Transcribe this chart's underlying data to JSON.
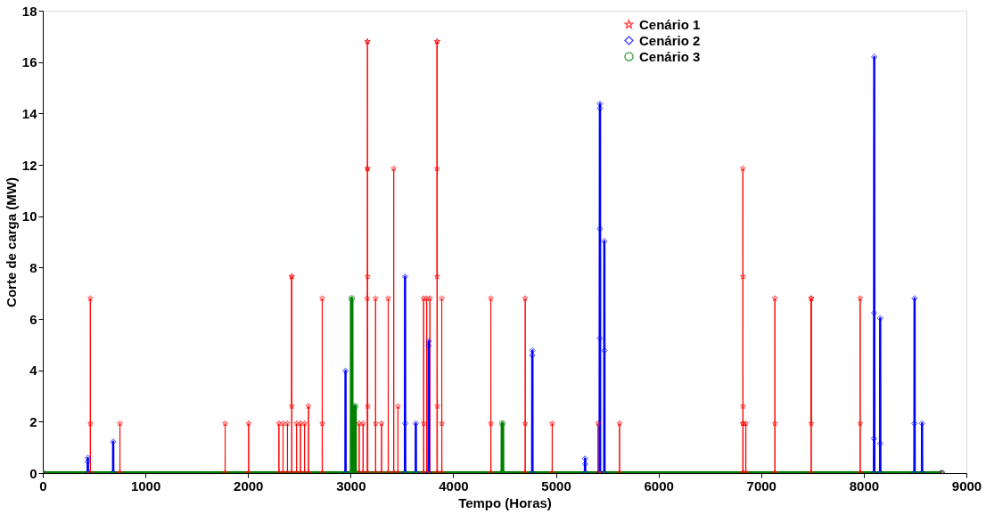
{
  "chart_data": {
    "type": "line",
    "xlabel": "Tempo  (Horas)",
    "ylabel": "Corte de carga (MW)",
    "xlim": [
      0,
      9000
    ],
    "xticks": [
      0,
      1000,
      2000,
      3000,
      4000,
      5000,
      6000,
      7000,
      8000,
      9000
    ],
    "ylim": [
      0,
      18
    ],
    "yticks": [
      0,
      2,
      4,
      6,
      8,
      10,
      12,
      14,
      16,
      18
    ],
    "grid": false,
    "legend": "top right",
    "line_style": "solid",
    "series": [
      {
        "name": "Cenário 1",
        "color": "#ff0000",
        "marker": "star",
        "x": [
          0,
          462,
          463,
          464,
          465,
          751,
          752,
          753,
          1776,
          1777,
          1778,
          2005,
          2006,
          2007,
          2300,
          2301,
          2302,
          2340,
          2341,
          2342,
          2383,
          2384,
          2385,
          2424,
          2425,
          2426,
          2427,
          2428,
          2472,
          2473,
          2474,
          2510,
          2511,
          2512,
          2550,
          2551,
          2552,
          2588,
          2589,
          2590,
          2722,
          2723,
          2724,
          2725,
          3082,
          3083,
          3084,
          3120,
          3121,
          3122,
          3160,
          3161,
          3162,
          3163,
          3164,
          3165,
          3166,
          3167,
          3168,
          3242,
          3243,
          3244,
          3245,
          3300,
          3301,
          3302,
          3365,
          3366,
          3367,
          3419,
          3420,
          3421,
          3460,
          3461,
          3462,
          3710,
          3711,
          3712,
          3713,
          3740,
          3741,
          3742,
          3771,
          3772,
          3773,
          3840,
          3841,
          3842,
          3843,
          3844,
          3845,
          3846,
          3887,
          3888,
          3889,
          3890,
          4365,
          4366,
          4367,
          4368,
          4699,
          4700,
          4701,
          4702,
          4963,
          4964,
          4965,
          5410,
          5411,
          5412,
          5619,
          5620,
          5621,
          6820,
          6821,
          6822,
          6823,
          6824,
          6825,
          6826,
          6850,
          6851,
          6852,
          7133,
          7134,
          7135,
          7136,
          7486,
          7487,
          7488,
          7489,
          7490,
          7964,
          7965,
          7966,
          7967,
          8760
        ],
        "values": [
          0,
          0,
          6.8,
          1.93,
          0,
          0,
          1.93,
          0,
          0,
          1.93,
          0,
          0,
          1.93,
          0,
          0,
          1.93,
          0,
          0,
          1.93,
          0,
          0,
          1.93,
          0,
          0,
          7.65,
          2.6,
          7.65,
          0,
          0,
          1.93,
          0,
          0,
          1.93,
          0,
          0,
          1.93,
          0,
          0,
          2.6,
          0,
          0,
          6.8,
          1.93,
          0,
          0,
          1.93,
          0,
          0,
          1.93,
          0,
          0,
          6.8,
          11.85,
          16.8,
          16.8,
          11.85,
          7.65,
          2.6,
          0,
          0,
          6.8,
          1.93,
          0,
          0,
          1.93,
          0,
          0,
          6.8,
          0,
          0,
          11.85,
          0,
          0,
          2.6,
          0,
          0,
          6.8,
          1.93,
          0,
          0,
          6.8,
          0,
          0,
          6.8,
          0,
          0,
          16.8,
          11.85,
          7.65,
          16.8,
          2.6,
          0,
          0,
          6.8,
          1.93,
          0,
          0,
          6.8,
          1.93,
          0,
          0,
          1.93,
          6.8,
          0,
          0,
          1.93,
          0,
          0,
          1.93,
          0,
          0,
          1.93,
          0,
          0,
          1.93,
          11.85,
          7.65,
          2.6,
          1.93,
          0,
          0,
          1.93,
          0,
          0,
          6.8,
          1.93,
          0,
          0,
          6.8,
          1.93,
          6.8,
          0,
          0,
          6.8,
          1.93,
          0,
          0
        ]
      },
      {
        "name": "Cenário 2",
        "color": "#0000ff",
        "marker": "diamond",
        "x": [
          0,
          437,
          438,
          439,
          440,
          685,
          686,
          687,
          2949,
          2950,
          2951,
          3529,
          3530,
          3531,
          3532,
          3634,
          3635,
          3636,
          3759,
          3760,
          3761,
          3762,
          4769,
          4770,
          4771,
          4772,
          5283,
          5284,
          5285,
          5286,
          5426,
          5427,
          5428,
          5429,
          5430,
          5431,
          5471,
          5472,
          5473,
          5474,
          8099,
          8100,
          8101,
          8102,
          8103,
          8159,
          8160,
          8161,
          8162,
          8493,
          8494,
          8495,
          8496,
          8567,
          8568,
          8569,
          8760
        ],
        "values": [
          0,
          0,
          0.44,
          0.59,
          0,
          0,
          1.22,
          0,
          0,
          3.98,
          0,
          0,
          7.65,
          1.93,
          0,
          0,
          1.93,
          0,
          0,
          4.95,
          5.13,
          0,
          0,
          4.58,
          4.77,
          0,
          0,
          0.56,
          0.35,
          0,
          0,
          5.25,
          9.51,
          14.38,
          14.2,
          0,
          0,
          9.03,
          4.77,
          0,
          0,
          1.34,
          6.23,
          16.2,
          0,
          0,
          6.03,
          1.15,
          0,
          0,
          1.93,
          6.8,
          0,
          0,
          1.93,
          0,
          0
        ]
      },
      {
        "name": "Cenário 3",
        "color": "#008000",
        "marker": "circle",
        "x": [
          0,
          3009,
          3010,
          3011,
          3042,
          3043,
          3044,
          4478,
          4479,
          4480,
          8760
        ],
        "values": [
          0,
          0,
          6.8,
          0,
          0,
          2.6,
          0,
          0,
          1.93,
          0,
          0
        ]
      }
    ]
  }
}
